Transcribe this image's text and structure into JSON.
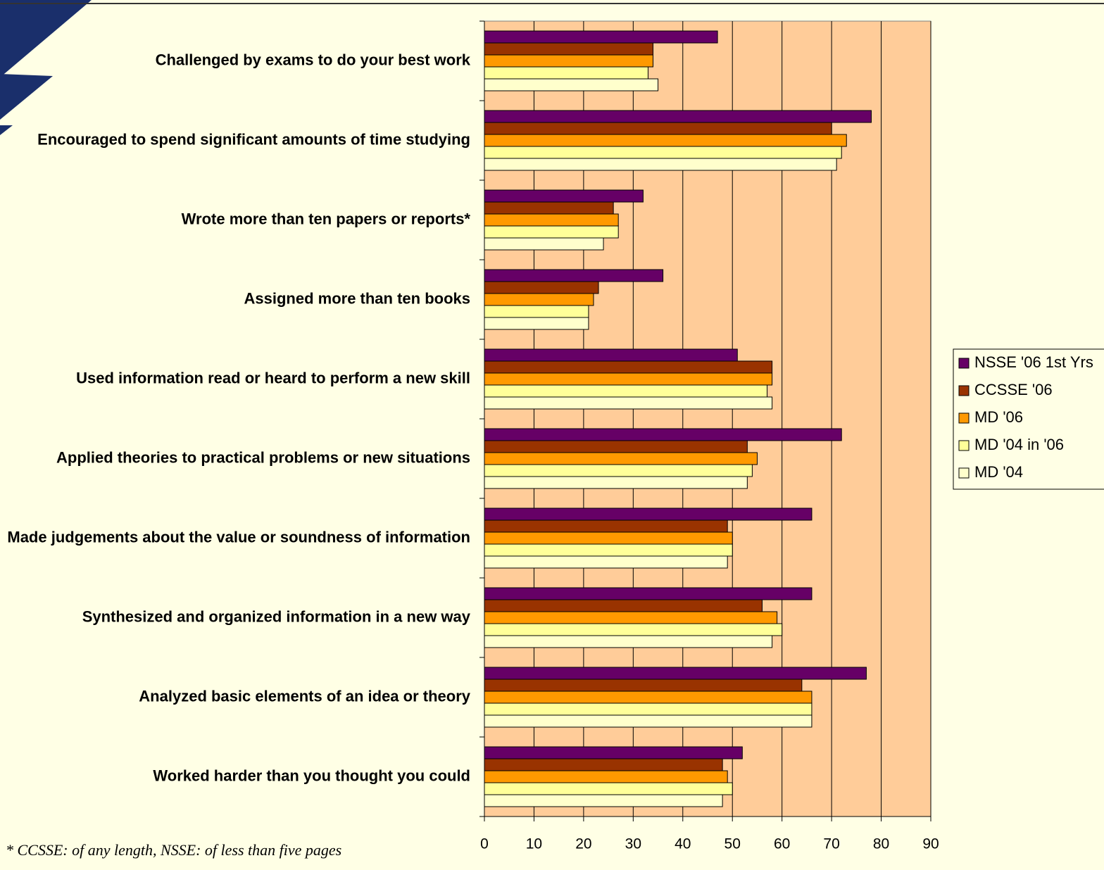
{
  "chart_data": {
    "type": "bar",
    "orientation": "horizontal",
    "categories": [
      "Challenged by exams to do your best work",
      "Encouraged to spend significant amounts of time studying",
      "Wrote more than ten papers or reports*",
      "Assigned more than ten books",
      "Used information read or heard to perform a new skill",
      "Applied theories to practical problems or new situations",
      "Made judgements about the value or soundness of information",
      "Synthesized and organized information in a new way",
      "Analyzed basic elements of an idea or theory",
      "Worked harder than you thought you could"
    ],
    "series": [
      {
        "name": "NSSE '06 1st Yrs",
        "color": "#660066",
        "values": [
          47,
          78,
          32,
          36,
          51,
          72,
          66,
          66,
          77,
          52
        ]
      },
      {
        "name": "CCSSE '06",
        "color": "#993300",
        "values": [
          34,
          70,
          26,
          23,
          58,
          53,
          49,
          56,
          64,
          48
        ]
      },
      {
        "name": "MD '06",
        "color": "#ff9900",
        "values": [
          34,
          73,
          27,
          22,
          58,
          55,
          50,
          59,
          66,
          49
        ]
      },
      {
        "name": "MD '04 in '06",
        "color": "#ffff99",
        "values": [
          33,
          72,
          27,
          21,
          57,
          54,
          50,
          60,
          66,
          50
        ]
      },
      {
        "name": "MD '04",
        "color": "#ffffcc",
        "values": [
          35,
          71,
          24,
          21,
          58,
          53,
          49,
          58,
          66,
          48
        ]
      }
    ],
    "xlim": [
      0,
      90
    ],
    "xticks": [
      0,
      10,
      20,
      30,
      40,
      50,
      60,
      70,
      80,
      90
    ],
    "grid": true,
    "legend": "right",
    "annotation": "* CCSSE: of any length, NSSE: of less than five pages"
  }
}
